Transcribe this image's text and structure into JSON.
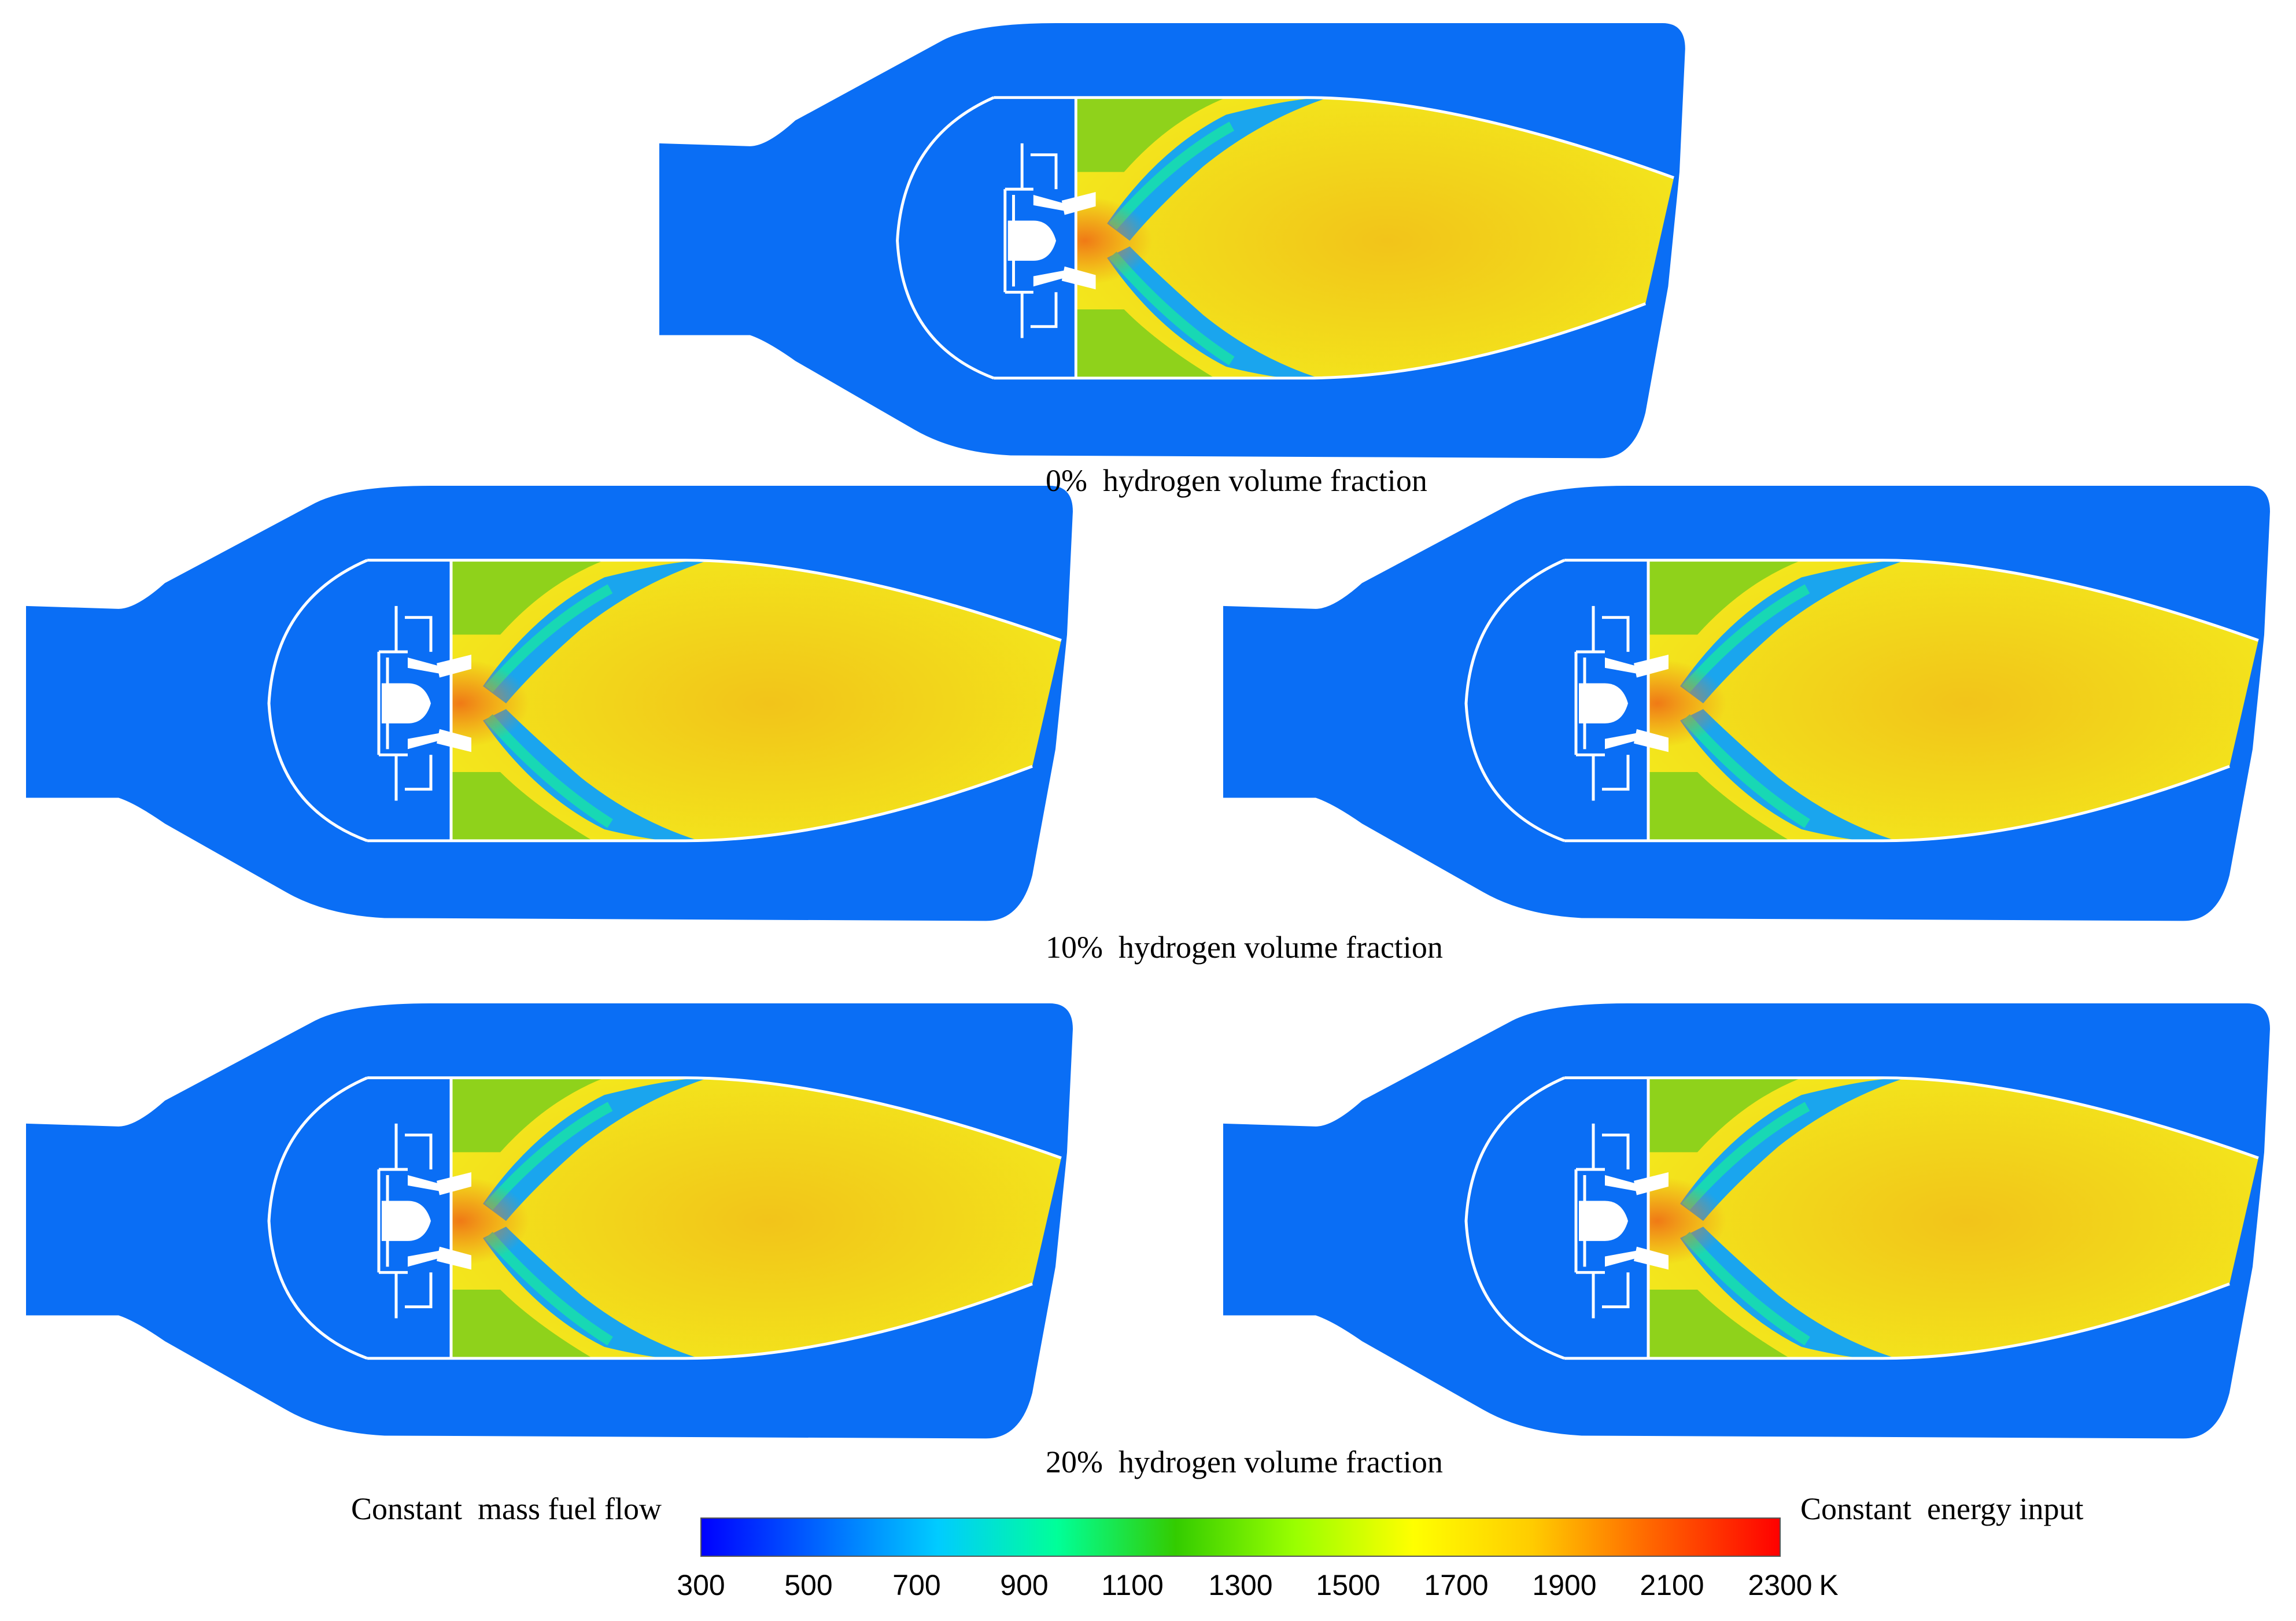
{
  "captions": {
    "top": "0%  hydrogen volume fraction",
    "middle": "10%  hydrogen volume fraction",
    "bottom": "20%  hydrogen volume fraction",
    "left_column": "Constant  mass fuel flow",
    "right_column": "Constant  energy input"
  },
  "colorbar": {
    "ticks": [
      "300",
      "500",
      "700",
      "900",
      "1100",
      "1300",
      "1500",
      "1700",
      "1900",
      "2100",
      "2300"
    ],
    "unit": "K",
    "min": 300,
    "max": 2300,
    "stops": [
      "#0000ff",
      "#0066ff",
      "#00ccff",
      "#00ff99",
      "#33cc00",
      "#99ff00",
      "#ffff00",
      "#ffcc00",
      "#ff6600",
      "#ff0000"
    ]
  },
  "colors": {
    "cold_air": "#0a6ef5",
    "flame_yellow": "#f3ea1c",
    "flame_orange": "#f2c41a",
    "hot_core": "#f07a16",
    "green_zone": "#8fd21b",
    "shear_blue": "#1aa5ee",
    "structure": "#ffffff"
  },
  "panels": [
    {
      "case": "0%",
      "column": "center"
    },
    {
      "case": "10%",
      "column": "left"
    },
    {
      "case": "10%",
      "column": "right"
    },
    {
      "case": "20%",
      "column": "left"
    },
    {
      "case": "20%",
      "column": "right"
    }
  ]
}
